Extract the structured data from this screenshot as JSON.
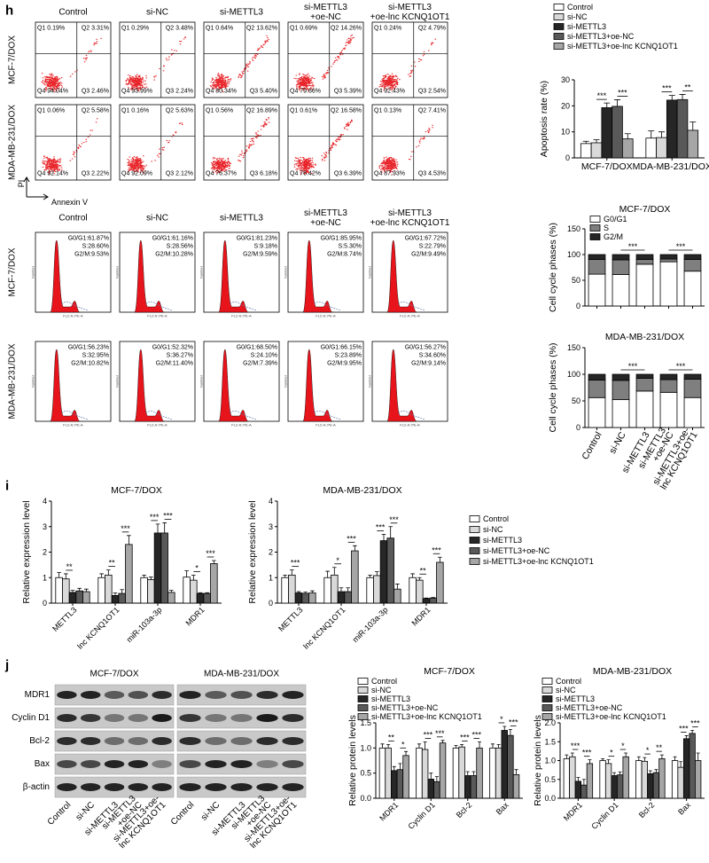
{
  "panel_h": {
    "label": "h",
    "columns": [
      [
        "Control"
      ],
      [
        "si-NC"
      ],
      [
        "si-METTL3"
      ],
      [
        "si-METTL3",
        "+oe-NC"
      ],
      [
        "si-METTL3",
        "+oe-lnc KCNQ1OT1"
      ]
    ],
    "rows": [
      "MCF-7/DOX",
      "MDA-MB-231/DOX"
    ],
    "y_axis_label": "PI",
    "x_axis_label": "Annexin V",
    "flow_plots": [
      [
        {
          "q1": "Q1 0.19%",
          "q2": "Q2 3.31%",
          "q3": "Q3 2.46%",
          "q4": "Q4 94.04%"
        },
        {
          "q1": "Q1 0.29%",
          "q2": "Q2 3.48%",
          "q3": "Q3 2.24%",
          "q4": "Q4 93.99%"
        },
        {
          "q1": "Q1 0.64%",
          "q2": "Q2 13.62%",
          "q3": "Q3 5.40%",
          "q4": "Q4 80.34%"
        },
        {
          "q1": "Q1 0.69%",
          "q2": "Q2 14.26%",
          "q3": "Q3 5.39%",
          "q4": "Q4 79.66%"
        },
        {
          "q1": "Q1 0.24%",
          "q2": "Q2 4.79%",
          "q3": "Q3 2.54%",
          "q4": "Q4 92.43%"
        }
      ],
      [
        {
          "q1": "Q1 0.06%",
          "q2": "Q2 5.58%",
          "q3": "Q3 2.22%",
          "q4": "Q4 92.14%"
        },
        {
          "q1": "Q1 0.16%",
          "q2": "Q2 5.63%",
          "q3": "Q3 2.12%",
          "q4": "Q4 92.09%"
        },
        {
          "q1": "Q1 0.56%",
          "q2": "Q2 16.89%",
          "q3": "Q3 6.18%",
          "q4": "Q4 76.37%"
        },
        {
          "q1": "Q1 0.61%",
          "q2": "Q2 16.58%",
          "q3": "Q3 6.39%",
          "q4": "Q4 76.42%"
        },
        {
          "q1": "Q1 0.13%",
          "q2": "Q2 7.41%",
          "q3": "Q3 4.53%",
          "q4": "Q4 87.93%"
        }
      ]
    ],
    "cycle_plots": [
      [
        [
          "G0/G1:61.87%",
          "S:28.60%",
          "G2/M:9.53%"
        ],
        [
          "G0/G1:61.16%",
          "S:28.56%",
          "G2/M:10.28%"
        ],
        [
          "G0/G1:81.23%",
          "S:9.18%",
          "G2/M:9.59%"
        ],
        [
          "G0/G1:85.95%",
          "S:5.30%",
          "G2/M:8.74%"
        ],
        [
          "G0/G1:67.72%",
          "S:22.79%",
          "G2/M:9.49%"
        ]
      ],
      [
        [
          "G0/G1:56.23%",
          "S:32.95%",
          "G2/M:10.82%"
        ],
        [
          "G0/G1:52.32%",
          "S:36.27%",
          "G2/M:11.40%"
        ],
        [
          "G0/G1:68.50%",
          "S:24.10%",
          "G2/M:7.39%"
        ],
        [
          "G0/G1:66.15%",
          "S:23.89%",
          "G2/M:9.95%"
        ],
        [
          "G0/G1:56.27%",
          "S:34.60%",
          "G2/M:9.14%"
        ]
      ]
    ],
    "cycle_x_label": "FL2-A::PE-A",
    "cycle_y_label": "Number"
  },
  "panel_i": {
    "label": "i"
  },
  "panel_j": {
    "label": "j",
    "blot": {
      "cells": [
        "MCF-7/DOX",
        "MDA-MB-231/DOX"
      ],
      "proteins": [
        "MDR1",
        "Cyclin D1",
        "Bcl-2",
        "Bax",
        "β-actin"
      ],
      "lanes": [
        [
          "Control"
        ],
        [
          "si-NC"
        ],
        [
          "si-METTL3"
        ],
        [
          "si-METTL3",
          "+oe-NC"
        ],
        [
          "si-METTL3+oe-",
          "lnc KCNQ1OT1"
        ]
      ]
    }
  },
  "chart_data": [
    {
      "type": "bar",
      "ylabel": "Apoptosis rate (%)",
      "categories": [
        "MCF-7/DOX",
        "MDA-MB-231/DOX"
      ],
      "ylim": [
        0,
        30
      ],
      "yticks": [
        0,
        10,
        20,
        30
      ],
      "legend": "top",
      "series": [
        {
          "name": "Control",
          "color": "#ffffff",
          "values": [
            5.5,
            7.6
          ],
          "errors": [
            0.9,
            2.8
          ]
        },
        {
          "name": "si-NC",
          "color": "#d9d9d9",
          "values": [
            5.8,
            7.8
          ],
          "errors": [
            1.2,
            2.2
          ]
        },
        {
          "name": "si-METTL3",
          "color": "#262626",
          "values": [
            19.3,
            22.2
          ],
          "errors": [
            1.8,
            1.8
          ]
        },
        {
          "name": "si-METTL3+oe-NC",
          "color": "#595959",
          "values": [
            19.8,
            22.4
          ],
          "errors": [
            2.5,
            2.0
          ]
        },
        {
          "name": "si-METTL3+oe-lnc KCNQ1OT1",
          "color": "#a6a6a6",
          "values": [
            7.3,
            10.6
          ],
          "errors": [
            2.0,
            3.2
          ]
        }
      ],
      "annotations": [
        [
          "***",
          "***"
        ],
        [
          "***",
          "**"
        ]
      ]
    },
    {
      "type": "stacked_bar",
      "title": "MCF-7/DOX",
      "ylabel": "Cell cycle phases (%)",
      "ylim": [
        0,
        150
      ],
      "yticks": [
        0,
        50,
        100,
        150
      ],
      "legend": "upper left",
      "series": [
        {
          "name": "G0/G1",
          "color": "#ffffff",
          "values": [
            61.87,
            61.16,
            81.23,
            85.95,
            67.72
          ]
        },
        {
          "name": "S",
          "color": "#7f7f7f",
          "values": [
            28.6,
            28.56,
            9.18,
            5.3,
            22.79
          ]
        },
        {
          "name": "G2/M",
          "color": "#262626",
          "values": [
            9.53,
            10.28,
            9.59,
            8.74,
            9.49
          ]
        }
      ],
      "annotations": [
        "***",
        "***"
      ]
    },
    {
      "type": "stacked_bar",
      "title": "MDA-MB-231/DOX",
      "ylabel": "Cell cycle phases (%)",
      "categories": [
        [
          "Control"
        ],
        [
          "si-NC"
        ],
        [
          "si-METTL3"
        ],
        [
          "si-METTL3",
          "+oe-NC"
        ],
        [
          "si-METTL3+oe-",
          "lnc KCNQ1OT1"
        ]
      ],
      "ylim": [
        0,
        150
      ],
      "yticks": [
        0,
        50,
        100,
        150
      ],
      "series": [
        {
          "name": "G0/G1",
          "color": "#ffffff",
          "values": [
            56.23,
            52.32,
            68.5,
            66.15,
            56.27
          ]
        },
        {
          "name": "S",
          "color": "#7f7f7f",
          "values": [
            32.95,
            36.27,
            24.1,
            23.89,
            34.6
          ]
        },
        {
          "name": "G2/M",
          "color": "#262626",
          "values": [
            10.82,
            11.4,
            7.39,
            9.95,
            9.14
          ]
        }
      ],
      "annotations": [
        "***",
        "***"
      ]
    },
    {
      "type": "bar",
      "title": "MCF-7/DOX",
      "ylabel": "Relative expression level",
      "categories": [
        "METTL3",
        "lnc KCNQ1OT1",
        "miR-103a-3p",
        "MDR1"
      ],
      "ylim": [
        0,
        4
      ],
      "yticks": [
        0,
        1,
        2,
        3,
        4
      ],
      "series": [
        {
          "name": "Control",
          "color": "#ffffff",
          "values": [
            1.0,
            1.0,
            1.0,
            1.02
          ],
          "errors": [
            0.2,
            0.15,
            0.1,
            0.25
          ]
        },
        {
          "name": "si-NC",
          "color": "#d9d9d9",
          "values": [
            0.95,
            1.1,
            0.92,
            0.9
          ],
          "errors": [
            0.2,
            0.2,
            0.1,
            0.2
          ]
        },
        {
          "name": "si-METTL3",
          "color": "#262626",
          "values": [
            0.42,
            0.3,
            2.75,
            0.38
          ],
          "errors": [
            0.08,
            0.1,
            0.35,
            0.03
          ]
        },
        {
          "name": "si-METTL3+oe-NC",
          "color": "#595959",
          "values": [
            0.48,
            0.38,
            2.75,
            0.38
          ],
          "errors": [
            0.1,
            0.15,
            0.4,
            0.03
          ]
        },
        {
          "name": "si-METTL3+oe-lnc KCNQ1OT1",
          "color": "#a6a6a6",
          "values": [
            0.45,
            2.3,
            0.42,
            1.55
          ],
          "errors": [
            0.1,
            0.35,
            0.08,
            0.12
          ]
        }
      ],
      "annotations": [
        [
          "**",
          null
        ],
        [
          "**",
          "***"
        ],
        [
          "***",
          "***"
        ],
        [
          "*",
          "***"
        ]
      ]
    },
    {
      "type": "bar",
      "title": "MDA-MB-231/DOX",
      "ylabel": "Relative expression level",
      "categories": [
        "METTL3",
        "lnc KCNQ1OT1",
        "miR-103a-3p",
        "MDR1"
      ],
      "ylim": [
        0,
        4
      ],
      "yticks": [
        0,
        1,
        2,
        3,
        4
      ],
      "legend": "right",
      "series": [
        {
          "name": "Control",
          "color": "#ffffff",
          "values": [
            1.0,
            1.0,
            1.0,
            1.0
          ],
          "errors": [
            0.1,
            0.25,
            0.1,
            0.15
          ]
        },
        {
          "name": "si-NC",
          "color": "#d9d9d9",
          "values": [
            1.1,
            1.1,
            1.08,
            0.9
          ],
          "errors": [
            0.2,
            0.3,
            0.15,
            0.1
          ]
        },
        {
          "name": "si-METTL3",
          "color": "#262626",
          "values": [
            0.4,
            0.45,
            2.45,
            0.18
          ],
          "errors": [
            0.05,
            0.15,
            0.25,
            0.02
          ]
        },
        {
          "name": "si-METTL3+oe-NC",
          "color": "#595959",
          "values": [
            0.38,
            0.45,
            2.55,
            0.2
          ],
          "errors": [
            0.05,
            0.15,
            0.45,
            0.02
          ]
        },
        {
          "name": "si-METTL3+oe-lnc KCNQ1OT1",
          "color": "#a6a6a6",
          "values": [
            0.4,
            2.05,
            0.55,
            1.6
          ],
          "errors": [
            0.08,
            0.2,
            0.2,
            0.2
          ]
        }
      ],
      "annotations": [
        [
          "***",
          null
        ],
        [
          "*",
          "***"
        ],
        [
          "***",
          "***"
        ],
        [
          "**",
          "***"
        ]
      ]
    },
    {
      "type": "bar",
      "title": "MCF-7/DOX",
      "ylabel": "Relative protein levels",
      "categories": [
        "MDR1",
        "Cyclin D1",
        "Bcl-2",
        "Bax"
      ],
      "ylim": [
        0,
        1.5
      ],
      "yticks": [
        {
          "value": 0,
          "label": "0.0"
        },
        0.5,
        {
          "value": 1,
          "label": "1.0"
        },
        1.5
      ],
      "legend": "top",
      "series": [
        {
          "name": "Control",
          "color": "#ffffff",
          "values": [
            1.0,
            1.0,
            1.0,
            1.0
          ],
          "errors": [
            0.08,
            0.08,
            0.05,
            0.08
          ]
        },
        {
          "name": "si-NC",
          "color": "#d9d9d9",
          "values": [
            1.0,
            0.97,
            1.02,
            1.0
          ],
          "errors": [
            0.07,
            0.15,
            0.05,
            0.07
          ]
        },
        {
          "name": "si-METTL3",
          "color": "#262626",
          "values": [
            0.55,
            0.38,
            0.45,
            1.35
          ],
          "errors": [
            0.08,
            0.12,
            0.08,
            0.08
          ]
        },
        {
          "name": "si-METTL3+oe-NC",
          "color": "#595959",
          "values": [
            0.57,
            0.33,
            0.45,
            1.25
          ],
          "errors": [
            0.12,
            0.1,
            0.08,
            0.12
          ]
        },
        {
          "name": "si-METTL3+oe-lnc KCNQ1OT1",
          "color": "#a6a6a6",
          "values": [
            0.85,
            1.1,
            1.0,
            0.47
          ],
          "errors": [
            0.08,
            0.05,
            0.12,
            0.1
          ]
        }
      ],
      "annotations": [
        [
          "**",
          "*"
        ],
        [
          "***",
          "***"
        ],
        [
          "***",
          "***"
        ],
        [
          "*",
          "***"
        ]
      ]
    },
    {
      "type": "bar",
      "title": "MDA-MB-231/DOX",
      "ylabel": "Relative protein levels",
      "categories": [
        "MDR1",
        "Cyclin D1",
        "Bcl-2",
        "Bax"
      ],
      "ylim": [
        0,
        2
      ],
      "yticks": [
        {
          "value": 0,
          "label": "0.0"
        },
        0.5,
        {
          "value": 1,
          "label": "1.0"
        },
        1.5,
        {
          "value": 2,
          "label": "2.0"
        }
      ],
      "legend": "top",
      "series": [
        {
          "name": "Control",
          "color": "#ffffff",
          "values": [
            1.05,
            1.0,
            1.0,
            1.0
          ],
          "errors": [
            0.1,
            0.05,
            0.1,
            0.1
          ]
        },
        {
          "name": "si-NC",
          "color": "#d9d9d9",
          "values": [
            1.1,
            0.92,
            0.98,
            0.82
          ],
          "errors": [
            0.1,
            0.1,
            0.1,
            0.15
          ]
        },
        {
          "name": "si-METTL3",
          "color": "#262626",
          "values": [
            0.45,
            0.6,
            0.65,
            1.58
          ],
          "errors": [
            0.1,
            0.08,
            0.08,
            0.08
          ]
        },
        {
          "name": "si-METTL3+oe-NC",
          "color": "#595959",
          "values": [
            0.35,
            0.62,
            0.68,
            1.72
          ],
          "errors": [
            0.15,
            0.08,
            0.08,
            0.08
          ]
        },
        {
          "name": "si-METTL3+oe-lnc KCNQ1OT1",
          "color": "#a6a6a6",
          "values": [
            0.92,
            1.1,
            1.05,
            1.0
          ],
          "errors": [
            0.1,
            0.1,
            0.1,
            0.2
          ]
        }
      ],
      "annotations": [
        [
          "***",
          "***"
        ],
        [
          "*",
          "*"
        ],
        [
          "*",
          "**"
        ],
        [
          "***",
          "***"
        ]
      ]
    }
  ]
}
